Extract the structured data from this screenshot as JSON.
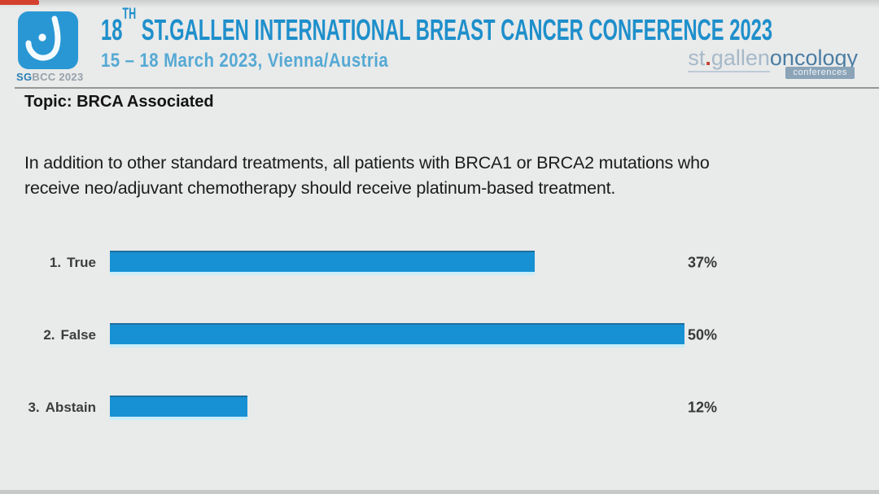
{
  "video_player": {
    "progress_bar_color": "#d4402e"
  },
  "header": {
    "logo": {
      "icon": "sgbcc-breast-logo",
      "caption_sg": "SG",
      "caption_rest": "BCC 2023"
    },
    "title": {
      "number": "18",
      "ordinal": "TH",
      "rest": " ST.GALLEN INTERNATIONAL BREAST CANCER CONFERENCE 2023"
    },
    "subtitle": "15 – 18 March 2023, Vienna/Austria",
    "brand": {
      "st": "st",
      "dot": ".",
      "gallen": "gallen",
      "oncology": "oncology",
      "badge": "conferences"
    }
  },
  "topic": "Topic: BRCA Associated",
  "question": {
    "line1": "In addition to other standard treatments, all patients with BRCA1 or BRCA2 mutations who",
    "line2": "receive neo/adjuvant chemotherapy should receive platinum-based treatment."
  },
  "chart_data": {
    "type": "bar",
    "orientation": "horizontal",
    "title": "",
    "option_numbers": [
      "1.",
      "2.",
      "3."
    ],
    "categories": [
      "True",
      "False",
      "Abstain"
    ],
    "values": [
      37,
      50,
      12
    ],
    "value_labels": [
      "37%",
      "50%",
      "12%"
    ],
    "unit": "%",
    "xlim": [
      0,
      50
    ],
    "grid": false,
    "legend": false,
    "bar_color": "#1791d3"
  },
  "colors": {
    "background": "#e9eaea",
    "title_blue": "#1e8fcb",
    "subtitle_blue": "#55a9d4",
    "bar_blue": "#1791d3",
    "bar_bottom_edge": "#c9eefa",
    "progress_red": "#d4402e"
  }
}
